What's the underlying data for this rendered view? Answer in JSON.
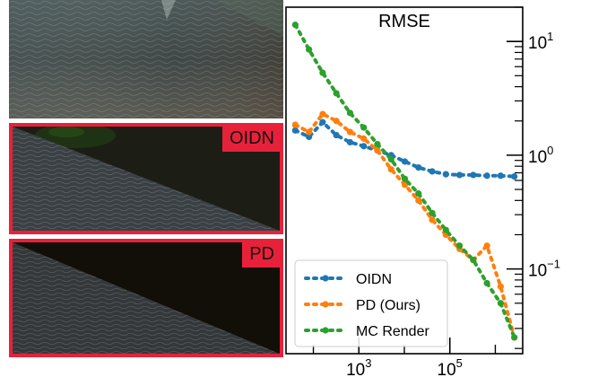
{
  "images": {
    "oidn_label": "OIDN",
    "pd_label": "PD"
  },
  "chart_data": {
    "type": "line",
    "title": "RMSE",
    "xlabel": "",
    "ylabel": "",
    "x_scale": "log",
    "y_scale": "log",
    "xlim": [
      25,
      4000000
    ],
    "ylim": [
      0.018,
      20
    ],
    "y_axis_side": "right",
    "x_ticks": [
      {
        "value": 1000,
        "base": "10",
        "exp": "3"
      },
      {
        "value": 100000,
        "base": "10",
        "exp": "5"
      }
    ],
    "y_ticks": [
      {
        "value": 10,
        "base": "10",
        "exp": "1"
      },
      {
        "value": 1,
        "base": "10",
        "exp": "0"
      },
      {
        "value": 0.1,
        "base": "10",
        "exp": "−1"
      }
    ],
    "grid": false,
    "legend_position": "bottom-left",
    "series": [
      {
        "name": "OIDN",
        "color": "#1f77b4",
        "x": [
          40,
          80,
          160,
          320,
          640,
          1280,
          2560,
          5120,
          10240,
          20480,
          40960,
          81920,
          163840,
          327680,
          655360,
          1310720,
          2621440
        ],
        "y": [
          1.65,
          1.45,
          1.95,
          1.5,
          1.3,
          1.2,
          1.1,
          1.0,
          0.88,
          0.78,
          0.72,
          0.68,
          0.67,
          0.67,
          0.66,
          0.66,
          0.65
        ]
      },
      {
        "name": "PD (Ours)",
        "color": "#ff7f0e",
        "x": [
          40,
          80,
          160,
          320,
          640,
          1280,
          2560,
          5120,
          10240,
          20480,
          40960,
          81920,
          163840,
          327680,
          655360,
          1310720,
          2621440
        ],
        "y": [
          1.85,
          1.6,
          2.3,
          2.0,
          1.6,
          1.4,
          1.1,
          0.75,
          0.55,
          0.4,
          0.27,
          0.2,
          0.15,
          0.12,
          0.16,
          0.07,
          0.025
        ]
      },
      {
        "name": "MC Render",
        "color": "#2ca02c",
        "x": [
          40,
          80,
          160,
          320,
          640,
          1280,
          2560,
          5120,
          10240,
          20480,
          40960,
          81920,
          163840,
          327680,
          655360,
          1310720,
          2621440
        ],
        "y": [
          14,
          8.5,
          5.3,
          3.5,
          2.35,
          1.75,
          1.25,
          0.92,
          0.62,
          0.46,
          0.31,
          0.22,
          0.16,
          0.12,
          0.075,
          0.05,
          0.025
        ]
      }
    ]
  }
}
